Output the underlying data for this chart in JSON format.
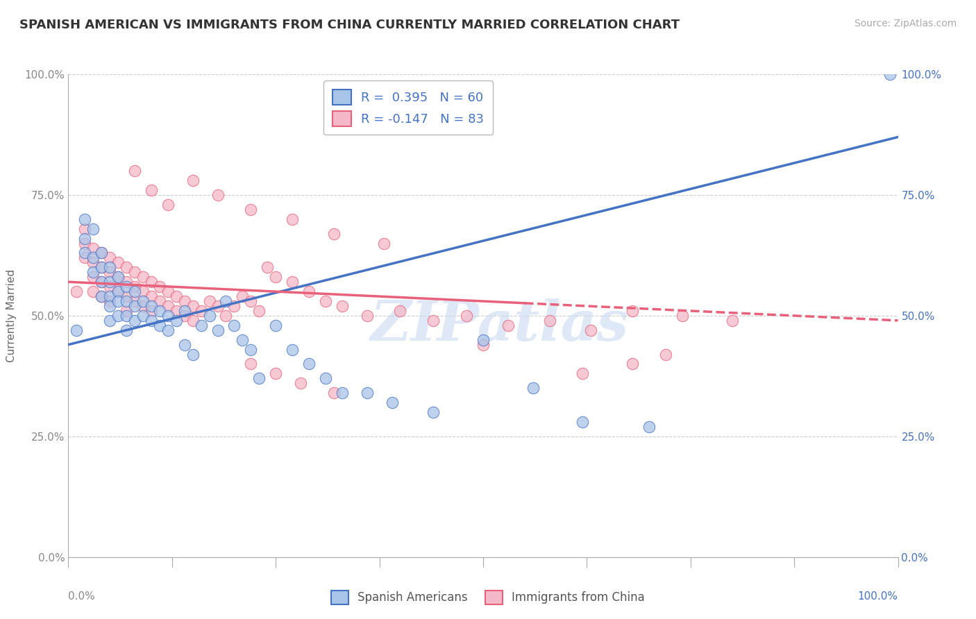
{
  "title": "SPANISH AMERICAN VS IMMIGRANTS FROM CHINA CURRENTLY MARRIED CORRELATION CHART",
  "source": "Source: ZipAtlas.com",
  "ylabel": "Currently Married",
  "xlabel": "",
  "xlim": [
    0.0,
    1.0
  ],
  "ylim": [
    0.0,
    1.0
  ],
  "xticks": [
    0.0,
    0.25,
    0.5,
    0.75,
    1.0
  ],
  "yticks": [
    0.0,
    0.25,
    0.5,
    0.75,
    1.0
  ],
  "xticklabels_bottom_left": "0.0%",
  "xticklabels_bottom_right": "100.0%",
  "yticklabels": [
    "0.0%",
    "25.0%",
    "50.0%",
    "75.0%",
    "100.0%"
  ],
  "blue_R": 0.395,
  "blue_N": 60,
  "pink_R": -0.147,
  "pink_N": 83,
  "blue_color": "#a8c4e8",
  "pink_color": "#f5b8c8",
  "blue_line_color": "#4472c4",
  "pink_line_color": "#e8607a",
  "legend_label_1": "Spanish Americans",
  "legend_label_2": "Immigrants from China",
  "watermark": "ZIPatlas",
  "title_fontsize": 13,
  "axis_label_fontsize": 11,
  "tick_fontsize": 11,
  "blue_scatter_x": [
    0.01,
    0.02,
    0.02,
    0.02,
    0.03,
    0.03,
    0.03,
    0.04,
    0.04,
    0.04,
    0.04,
    0.05,
    0.05,
    0.05,
    0.05,
    0.05,
    0.06,
    0.06,
    0.06,
    0.06,
    0.07,
    0.07,
    0.07,
    0.07,
    0.08,
    0.08,
    0.08,
    0.09,
    0.09,
    0.1,
    0.1,
    0.11,
    0.11,
    0.12,
    0.12,
    0.13,
    0.14,
    0.14,
    0.15,
    0.16,
    0.17,
    0.18,
    0.19,
    0.2,
    0.21,
    0.22,
    0.23,
    0.25,
    0.27,
    0.29,
    0.31,
    0.33,
    0.36,
    0.39,
    0.44,
    0.5,
    0.56,
    0.62,
    0.7,
    0.99
  ],
  "blue_scatter_y": [
    0.47,
    0.7,
    0.66,
    0.63,
    0.62,
    0.68,
    0.59,
    0.63,
    0.6,
    0.57,
    0.54,
    0.6,
    0.57,
    0.54,
    0.52,
    0.49,
    0.58,
    0.55,
    0.53,
    0.5,
    0.56,
    0.53,
    0.5,
    0.47,
    0.55,
    0.52,
    0.49,
    0.53,
    0.5,
    0.52,
    0.49,
    0.51,
    0.48,
    0.5,
    0.47,
    0.49,
    0.51,
    0.44,
    0.42,
    0.48,
    0.5,
    0.47,
    0.53,
    0.48,
    0.45,
    0.43,
    0.37,
    0.48,
    0.43,
    0.4,
    0.37,
    0.34,
    0.34,
    0.32,
    0.3,
    0.45,
    0.35,
    0.28,
    0.27,
    1.0
  ],
  "pink_scatter_x": [
    0.01,
    0.02,
    0.02,
    0.02,
    0.03,
    0.03,
    0.03,
    0.03,
    0.04,
    0.04,
    0.04,
    0.04,
    0.05,
    0.05,
    0.05,
    0.05,
    0.06,
    0.06,
    0.06,
    0.07,
    0.07,
    0.07,
    0.07,
    0.08,
    0.08,
    0.08,
    0.09,
    0.09,
    0.09,
    0.1,
    0.1,
    0.1,
    0.11,
    0.11,
    0.12,
    0.12,
    0.13,
    0.13,
    0.14,
    0.14,
    0.15,
    0.15,
    0.16,
    0.17,
    0.18,
    0.19,
    0.2,
    0.21,
    0.22,
    0.23,
    0.24,
    0.25,
    0.27,
    0.29,
    0.31,
    0.33,
    0.36,
    0.4,
    0.44,
    0.48,
    0.53,
    0.58,
    0.63,
    0.68,
    0.74,
    0.8,
    0.68,
    0.72,
    0.62,
    0.5,
    0.08,
    0.1,
    0.12,
    0.15,
    0.18,
    0.22,
    0.27,
    0.32,
    0.38,
    0.22,
    0.25,
    0.28,
    0.32
  ],
  "pink_scatter_y": [
    0.55,
    0.68,
    0.65,
    0.62,
    0.64,
    0.61,
    0.58,
    0.55,
    0.63,
    0.6,
    0.57,
    0.54,
    0.62,
    0.59,
    0.56,
    0.53,
    0.61,
    0.58,
    0.55,
    0.6,
    0.57,
    0.54,
    0.51,
    0.59,
    0.56,
    0.53,
    0.58,
    0.55,
    0.52,
    0.57,
    0.54,
    0.51,
    0.56,
    0.53,
    0.55,
    0.52,
    0.54,
    0.51,
    0.53,
    0.5,
    0.52,
    0.49,
    0.51,
    0.53,
    0.52,
    0.5,
    0.52,
    0.54,
    0.53,
    0.51,
    0.6,
    0.58,
    0.57,
    0.55,
    0.53,
    0.52,
    0.5,
    0.51,
    0.49,
    0.5,
    0.48,
    0.49,
    0.47,
    0.51,
    0.5,
    0.49,
    0.4,
    0.42,
    0.38,
    0.44,
    0.8,
    0.76,
    0.73,
    0.78,
    0.75,
    0.72,
    0.7,
    0.67,
    0.65,
    0.4,
    0.38,
    0.36,
    0.34
  ]
}
